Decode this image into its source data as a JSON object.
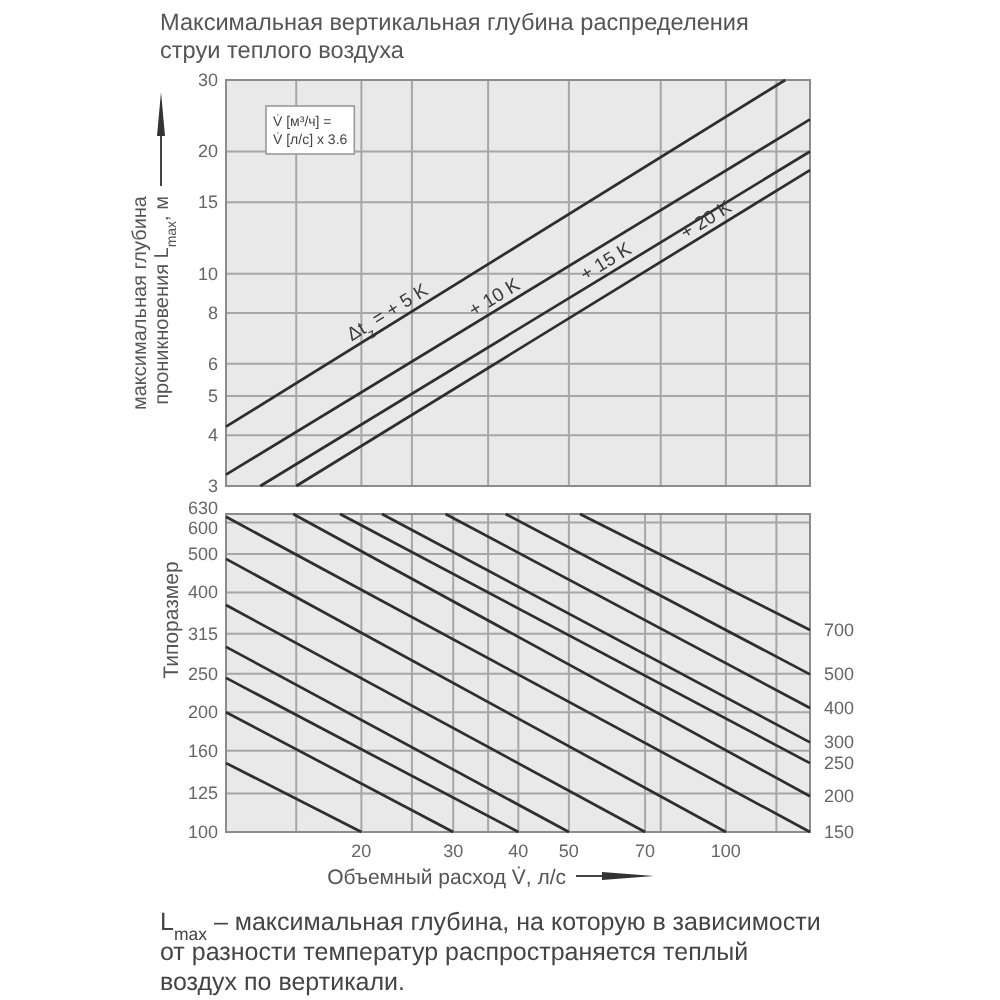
{
  "chart_data": [
    {
      "type": "line",
      "title": "Максимальная вертикальная глубина распределения струи теплого воздуха",
      "ylabel": "максимальная глубина проникновения L$_{max}$, м",
      "annotations": [
        "V̇ [м³/ч] =\nV̇ [л/с] x 3.6"
      ],
      "log": "xy",
      "xlim": [
        11,
        145
      ],
      "xticks": [
        {
          "value": 15,
          "label": null
        },
        {
          "value": 20,
          "label": null
        },
        {
          "value": 25,
          "label": null
        },
        {
          "value": 35,
          "label": null
        },
        {
          "value": 50,
          "label": null
        },
        {
          "value": 75,
          "label": null
        },
        {
          "value": 100,
          "label": null
        },
        {
          "value": 125,
          "label": null
        }
      ],
      "ylim": [
        3,
        30
      ],
      "yticks": [
        3,
        4,
        5,
        6,
        8,
        10,
        15,
        20,
        30
      ],
      "tick_labels": "y",
      "grid": true,
      "series": [
        {
          "name": "Δt$_{z}$ = + 5 K",
          "color": "#2e2e2e",
          "x": [
            11,
            130
          ],
          "values": [
            4.2,
            30
          ]
        },
        {
          "name": "+ 10 K",
          "color": "#2e2e2e",
          "x": [
            11,
            145
          ],
          "values": [
            3.2,
            24
          ]
        },
        {
          "name": "+ 15 K",
          "color": "#2e2e2e",
          "x": [
            12.8,
            145
          ],
          "values": [
            3,
            20
          ]
        },
        {
          "name": "+ 20 K",
          "color": "#2e2e2e",
          "x": [
            15,
            145
          ],
          "values": [
            3,
            18
          ]
        }
      ]
    },
    {
      "type": "line",
      "xlabel": "Объемный расход V̇, л/с",
      "ylabel": "Типоразмер",
      "annotations": [
        "L$_{max}$ – максимальная глубина, на которую в зависимости от разности температур распространяется теплый воздух по вертикали."
      ],
      "log": "xy",
      "xlim": [
        11,
        145
      ],
      "xticks": [
        {
          "value": 15,
          "label": null
        },
        20,
        {
          "value": 25,
          "label": null
        },
        30,
        {
          "value": 35,
          "label": null
        },
        40,
        50,
        70,
        {
          "value": 75,
          "label": null
        },
        100,
        {
          "value": 125,
          "label": null
        }
      ],
      "ylim": [
        100,
        630
      ],
      "yticks": [
        100,
        125,
        160,
        200,
        250,
        315,
        400,
        500,
        600,
        630
      ],
      "grid": true,
      "series": [
        {
          "color": "#2e2e2e",
          "x": [
            11,
            20
          ],
          "values": [
            149,
            100
          ]
        },
        {
          "color": "#2e2e2e",
          "x": [
            11,
            30
          ],
          "values": [
            200,
            100
          ]
        },
        {
          "color": "#2e2e2e",
          "x": [
            11,
            40
          ],
          "values": [
            244,
            100
          ]
        },
        {
          "color": "#2e2e2e",
          "x": [
            11,
            50
          ],
          "values": [
            292,
            100
          ]
        },
        {
          "color": "#2e2e2e",
          "x": [
            11,
            70
          ],
          "values": [
            372,
            100
          ]
        },
        {
          "color": "#2e2e2e",
          "x": [
            11,
            100
          ],
          "values": [
            486,
            100
          ]
        },
        {
          "name": "150",
          "color": "#2e2e2e",
          "x": [
            11,
            145
          ],
          "values": [
            620,
            100
          ]
        },
        {
          "name": "200",
          "color": "#2e2e2e",
          "x": [
            14.8,
            145
          ],
          "values": [
            630,
            123
          ]
        },
        {
          "name": "250",
          "color": "#2e2e2e",
          "x": [
            18.2,
            145
          ],
          "values": [
            630,
            149
          ]
        },
        {
          "name": "300",
          "color": "#2e2e2e",
          "x": [
            21.9,
            145
          ],
          "values": [
            630,
            168
          ]
        },
        {
          "name": "400",
          "color": "#2e2e2e",
          "x": [
            29,
            145
          ],
          "values": [
            630,
            205
          ]
        },
        {
          "name": "500",
          "color": "#2e2e2e",
          "x": [
            37.8,
            145
          ],
          "values": [
            630,
            249
          ]
        },
        {
          "name": "700",
          "color": "#2e2e2e",
          "x": [
            52.5,
            145
          ],
          "values": [
            630,
            322
          ]
        }
      ]
    }
  ]
}
